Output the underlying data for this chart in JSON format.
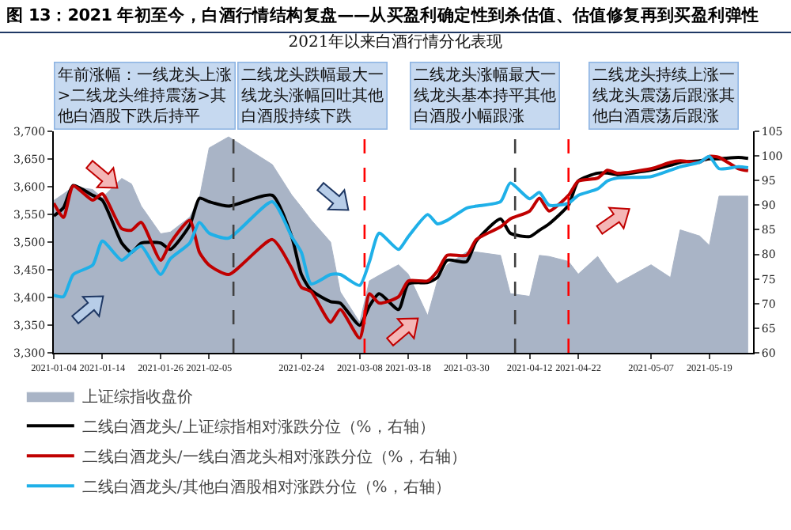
{
  "chart_data": {
    "type": "line",
    "title": "图 13：2021 年初至今，白酒行情结构复盘——从买盈利确定性到杀估值、估值修复再到买盈利弹性",
    "subtitle": "2021年以来白酒行情分化表现",
    "x": [
      "2021-01-04",
      "2021-01-06",
      "2021-01-08",
      "2021-01-12",
      "2021-01-14",
      "2021-01-18",
      "2021-01-20",
      "2021-01-22",
      "2021-01-26",
      "2021-01-28",
      "2021-02-01",
      "2021-02-03",
      "2021-02-05",
      "2021-02-09",
      "2021-02-18",
      "2021-02-22",
      "2021-02-24",
      "2021-02-26",
      "2021-03-02",
      "2021-03-04",
      "2021-03-08",
      "2021-03-10",
      "2021-03-12",
      "2021-03-16",
      "2021-03-18",
      "2021-03-22",
      "2021-03-24",
      "2021-03-26",
      "2021-03-30",
      "2021-04-01",
      "2021-04-06",
      "2021-04-08",
      "2021-04-12",
      "2021-04-14",
      "2021-04-16",
      "2021-04-20",
      "2021-04-22",
      "2021-04-26",
      "2021-04-28",
      "2021-04-30",
      "2021-05-07",
      "2021-05-11",
      "2021-05-13",
      "2021-05-17",
      "2021-05-19",
      "2021-05-21",
      "2021-05-25",
      "2021-05-27"
    ],
    "series": [
      {
        "name": "上证综指收盘价",
        "type": "area",
        "color": "#a9b4c6",
        "values": [
          3575,
          3587,
          3600,
          3595,
          3580,
          3615,
          3605,
          3565,
          3515,
          3518,
          3545,
          3580,
          3670,
          3690,
          3640,
          3585,
          3563,
          3540,
          3500,
          3410,
          3355,
          3430,
          3440,
          3459,
          3442,
          3367,
          3430,
          3459,
          3482,
          3482,
          3476,
          3407,
          3402,
          3476,
          3474,
          3465,
          3442,
          3474,
          3448,
          3425,
          3459,
          3436,
          3522,
          3511,
          3494,
          3583,
          3583,
          3583
        ]
      },
      {
        "name": "二线白酒龙头/上证综指相对涨跌分位（%，右轴）",
        "axis": "y2",
        "color": "#000000",
        "values": [
          87.8,
          89.5,
          94,
          92,
          91,
          82.3,
          80.4,
          82.3,
          82.3,
          81,
          85.9,
          91.4,
          90.7,
          89.8,
          92,
          83.6,
          75.9,
          72.7,
          70.4,
          70.1,
          65.6,
          69.5,
          72,
          68.8,
          74,
          74.3,
          75.3,
          78.8,
          78.5,
          82.7,
          87.2,
          84.3,
          83.6,
          84.9,
          86.2,
          90,
          94.9,
          96.5,
          96.5,
          96.2,
          97.1,
          98.1,
          98.7,
          99,
          99.4,
          99.4,
          99.7,
          99.5
        ]
      },
      {
        "name": "二线白酒龙头/一线白酒龙头相对涨跌分位（%，右轴）",
        "axis": "y2",
        "color": "#c00000",
        "values": [
          90.4,
          87.5,
          93.9,
          91,
          92.3,
          85.2,
          84.9,
          86.5,
          78.8,
          82.3,
          86.9,
          80.4,
          77.8,
          75.9,
          83,
          77.2,
          73.3,
          72.4,
          66.2,
          68.8,
          63,
          72,
          70.1,
          71.4,
          74.6,
          74.6,
          76.6,
          79.8,
          79.8,
          83,
          85.6,
          87.2,
          88.8,
          91.4,
          88.8,
          92,
          94.9,
          95.5,
          97.1,
          96.5,
          97.4,
          98.7,
          99,
          98.7,
          99.9,
          99.7,
          97.4,
          97
        ]
      },
      {
        "name": "二线白酒龙头/其他白酒股相对涨跌分位（%，右轴）",
        "axis": "y2",
        "color": "#1fb0e8",
        "values": [
          71.7,
          71.4,
          75.9,
          77.8,
          82.7,
          78.8,
          80.4,
          81.7,
          75.9,
          79.1,
          82.3,
          86.5,
          84.3,
          83.3,
          90.7,
          83.6,
          80.4,
          74,
          75.9,
          75.9,
          73.7,
          78.5,
          84.3,
          81,
          83.6,
          88.1,
          86.2,
          86.9,
          89.4,
          89.8,
          90.7,
          94.5,
          91.3,
          92.6,
          90,
          90.4,
          92,
          93.3,
          94.9,
          95.5,
          95.8,
          97.1,
          97.8,
          98.7,
          99.9,
          97.4,
          97.8,
          97.6
        ]
      }
    ],
    "xlim": [
      "2021-01-04",
      "2021-05-28"
    ],
    "ylim": [
      3300,
      3700
    ],
    "yticks": [
      {
        "value": 3300,
        "label": "3,300"
      },
      {
        "value": 3350,
        "label": "3,350"
      },
      {
        "value": 3400,
        "label": "3,400"
      },
      {
        "value": 3450,
        "label": "3,450"
      },
      {
        "value": 3500,
        "label": "3,500"
      },
      {
        "value": 3550,
        "label": "3,550"
      },
      {
        "value": 3600,
        "label": "3,600"
      },
      {
        "value": 3650,
        "label": "3,650"
      },
      {
        "value": 3700,
        "label": "3,700"
      }
    ],
    "y2lim": [
      60,
      105
    ],
    "y2ticks": [
      60,
      65,
      70,
      75,
      80,
      85,
      90,
      95,
      100,
      105
    ],
    "xticks": [
      {
        "value": "2021-01-04",
        "label": "2021-01-04"
      },
      {
        "value": "2021-01-14",
        "label": "2021-01-14"
      },
      {
        "value": "2021-01-26",
        "label": "2021-01-26"
      },
      {
        "value": "2021-02-05",
        "label": "2021-02-05"
      },
      {
        "value": "2021-02-24",
        "label": "2021-02-24"
      },
      {
        "value": "2021-03-08",
        "label": "2021-03-08"
      },
      {
        "value": "2021-03-18",
        "label": "2021-03-18"
      },
      {
        "value": "2021-03-30",
        "label": "2021-03-30"
      },
      {
        "value": "2021-04-12",
        "label": "2021-04-12"
      },
      {
        "value": "2021-04-22",
        "label": "2021-04-22"
      },
      {
        "value": "2021-05-07",
        "label": "2021-05-07"
      },
      {
        "value": "2021-05-19",
        "label": "2021-05-19"
      }
    ],
    "ref_lines": [
      {
        "axis": "x",
        "value": "2021-02-10",
        "color": "#404040",
        "line_style": "dashed"
      },
      {
        "axis": "x",
        "value": "2021-03-09",
        "color": "#ff0000",
        "line_style": "dashed"
      },
      {
        "axis": "x",
        "value": "2021-04-09",
        "color": "#404040",
        "line_style": "dashed"
      },
      {
        "axis": "x",
        "value": "2021-04-20",
        "color": "#ff0000",
        "line_style": "dashed"
      }
    ],
    "annotations": [
      "年前涨幅：一线龙头上涨>二线龙头维持震荡>其他白酒股下跌后持平",
      "二线龙头跌幅最大一线龙头涨幅回吐其他白酒股持续下跌",
      "二线龙头涨幅最大一线龙头基本持平其他白酒股小幅跟涨",
      "二线龙头持续上涨一线龙头震荡后跟涨其他白酒震荡后跟涨"
    ],
    "line_style": "solid",
    "marker": "none",
    "grid": false,
    "legend": "bottom"
  }
}
